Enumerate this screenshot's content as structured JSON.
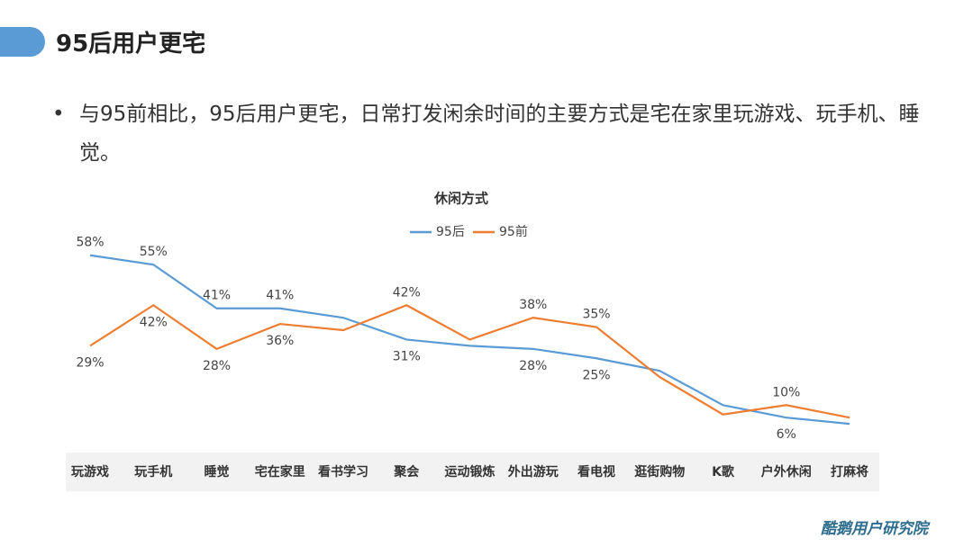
{
  "header": {
    "title": "95后用户更宅"
  },
  "bullet": "与95前相比，95后用户更宅，日常打发闲余时间的主要方式是宅在家里玩游戏、玩手机、睡觉。",
  "footer": {
    "brand": "酷鹅用户研究院"
  },
  "chart_data": {
    "type": "line",
    "title": "休闲方式",
    "categories": [
      "玩游戏",
      "玩手机",
      "睡觉",
      "宅在家里",
      "看书学习",
      "聚会",
      "运动锻炼",
      "外出游玩",
      "看电视",
      "逛街购物",
      "K歌",
      "户外休闲",
      "打麻将"
    ],
    "series": [
      {
        "name": "95后",
        "color": "#5b9bd5",
        "values": [
          58,
          55,
          41,
          41,
          38,
          31,
          29,
          28,
          25,
          21,
          10,
          6,
          4
        ],
        "value_labels": [
          "58%",
          "55%",
          "41%",
          "41%",
          null,
          "31%",
          null,
          "28%",
          "25%",
          null,
          null,
          "6%",
          null
        ]
      },
      {
        "name": "95前",
        "color": "#ed7d31",
        "values": [
          29,
          42,
          28,
          36,
          34,
          42,
          31,
          38,
          35,
          19,
          7,
          10,
          6
        ],
        "value_labels": [
          "29%",
          "42%",
          "28%",
          "36%",
          null,
          "42%",
          null,
          "38%",
          "35%",
          null,
          null,
          "10%",
          null
        ]
      }
    ]
  }
}
